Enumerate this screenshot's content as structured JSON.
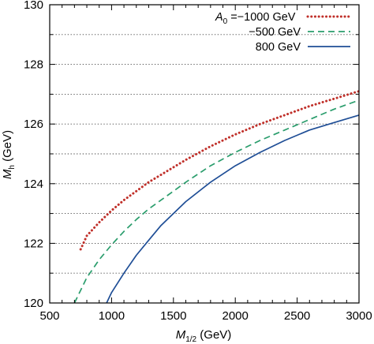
{
  "chart_data": {
    "type": "line",
    "xlabel": "M",
    "xlabel_sub": "1/2",
    "xlabel_unit": " (GeV)",
    "ylabel": "M",
    "ylabel_sub": "h",
    "ylabel_unit": " (GeV)",
    "xlim": [
      500,
      3000
    ],
    "ylim": [
      120,
      130
    ],
    "xticks": [
      500,
      1000,
      1500,
      2000,
      2500,
      3000
    ],
    "yticks": [
      120,
      122,
      124,
      126,
      128,
      130
    ],
    "grid": "horizontal-dotted",
    "legend": {
      "placement": "top-right",
      "title_var": "A",
      "title_sub": "0",
      "title_eq": " = "
    },
    "series": [
      {
        "name": "−1000 GeV",
        "color": "#c0302a",
        "style": "dotted",
        "x": [
          750,
          800,
          900,
          1000,
          1100,
          1200,
          1300,
          1400,
          1500,
          1600,
          1800,
          2000,
          2200,
          2400,
          2600,
          2800,
          3000
        ],
        "y": [
          121.8,
          122.25,
          122.7,
          123.1,
          123.45,
          123.75,
          124.05,
          124.3,
          124.55,
          124.8,
          125.25,
          125.65,
          126.0,
          126.3,
          126.6,
          126.85,
          127.1
        ]
      },
      {
        "name": "−500 GeV",
        "color": "#2a9d6c",
        "style": "dashed",
        "x": [
          700,
          800,
          900,
          1000,
          1100,
          1200,
          1300,
          1400,
          1500,
          1600,
          1800,
          2000,
          2200,
          2400,
          2600,
          2800,
          3000
        ],
        "y": [
          120.0,
          120.85,
          121.45,
          121.95,
          122.4,
          122.8,
          123.15,
          123.45,
          123.75,
          124.05,
          124.6,
          125.05,
          125.45,
          125.8,
          126.15,
          126.5,
          126.8
        ]
      },
      {
        "name": "800 GeV",
        "color": "#1f4e96",
        "style": "solid",
        "x": [
          960,
          1000,
          1100,
          1200,
          1300,
          1400,
          1500,
          1600,
          1800,
          2000,
          2200,
          2400,
          2600,
          2800,
          3000
        ],
        "y": [
          120.0,
          120.35,
          121.0,
          121.6,
          122.1,
          122.6,
          123.0,
          123.4,
          124.05,
          124.6,
          125.05,
          125.45,
          125.8,
          126.05,
          126.3
        ]
      }
    ]
  }
}
